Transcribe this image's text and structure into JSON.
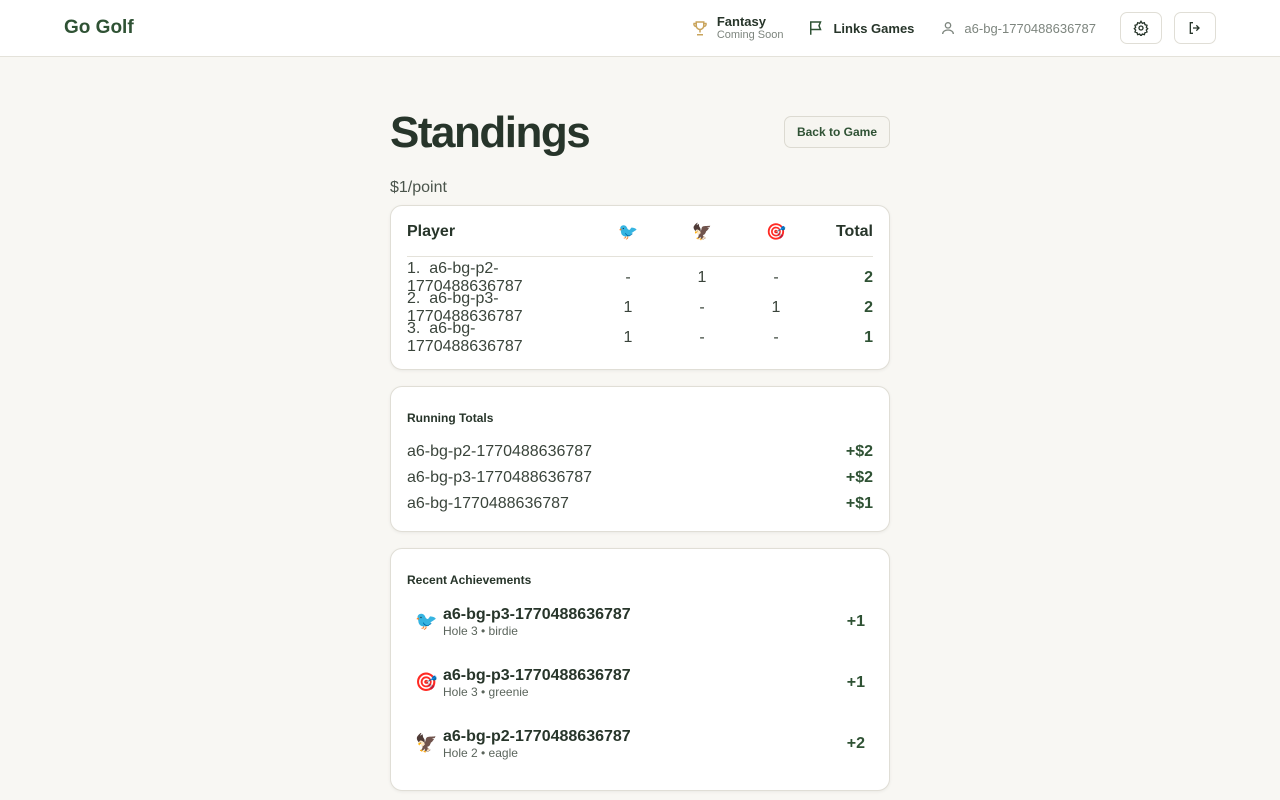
{
  "nav": {
    "logo": "Go Golf",
    "fantasy": "Fantasy",
    "fantasy_sub": "Coming Soon",
    "links_games": "Links Games",
    "user": "a6-bg-1770488636787"
  },
  "page": {
    "title": "Standings",
    "back": "Back to Game",
    "rate": "$1/point"
  },
  "standings": {
    "headers": {
      "player": "Player",
      "birdie": "🐦",
      "eagle": "🦅",
      "greenie": "🎯",
      "total": "Total"
    },
    "rows": [
      {
        "rank": "1.",
        "name": "a6-bg-p2-1770488636787",
        "birdie": "-",
        "eagle": "1",
        "greenie": "-",
        "total": "2"
      },
      {
        "rank": "2.",
        "name": "a6-bg-p3-1770488636787",
        "birdie": "1",
        "eagle": "-",
        "greenie": "1",
        "total": "2"
      },
      {
        "rank": "3.",
        "name": "a6-bg-1770488636787",
        "birdie": "1",
        "eagle": "-",
        "greenie": "-",
        "total": "1"
      }
    ]
  },
  "running": {
    "title": "Running Totals",
    "rows": [
      {
        "name": "a6-bg-p2-1770488636787",
        "amount": "+$2"
      },
      {
        "name": "a6-bg-p3-1770488636787",
        "amount": "+$2"
      },
      {
        "name": "a6-bg-1770488636787",
        "amount": "+$1"
      }
    ]
  },
  "achievements": {
    "title": "Recent Achievements",
    "items": [
      {
        "icon": "🐦",
        "name": "a6-bg-p3-1770488636787",
        "detail": "Hole 3 • birdie",
        "points": "+1"
      },
      {
        "icon": "🎯",
        "name": "a6-bg-p3-1770488636787",
        "detail": "Hole 3 • greenie",
        "points": "+1"
      },
      {
        "icon": "🦅",
        "name": "a6-bg-p2-1770488636787",
        "detail": "Hole 2 • eagle",
        "points": "+2"
      }
    ]
  }
}
